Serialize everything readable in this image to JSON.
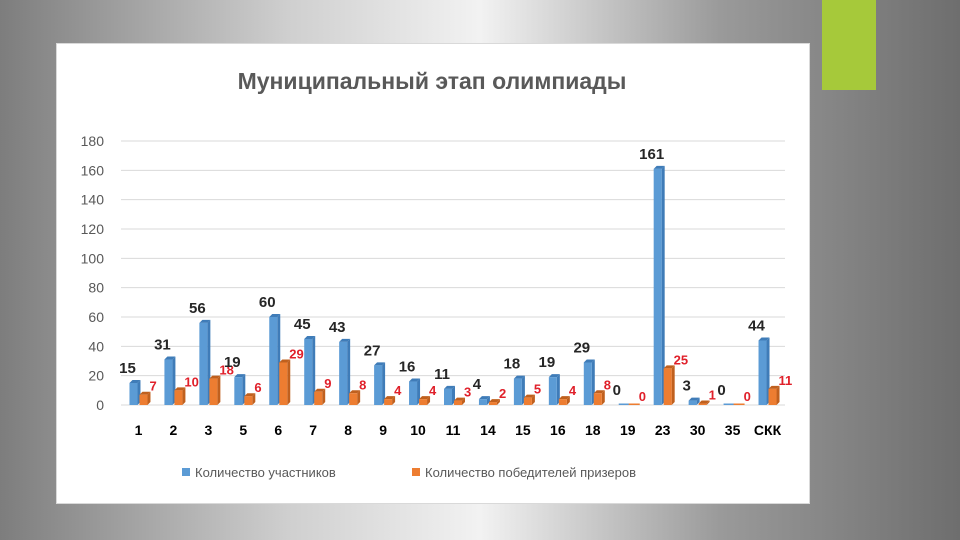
{
  "colors": {
    "accent_square": "#a6c93a",
    "series_participants": "#5b9bd5",
    "series_winners": "#ed7d31",
    "winners_label": "#e0202a"
  },
  "chart_data": {
    "type": "bar",
    "title": "Муниципальный этап олимпиады",
    "xlabel": "",
    "ylabel": "",
    "ylim": [
      0,
      180
    ],
    "yticks": [
      0,
      20,
      40,
      60,
      80,
      100,
      120,
      140,
      160,
      180
    ],
    "grid": true,
    "legend_position": "bottom",
    "categories": [
      "1",
      "2",
      "3",
      "5",
      "6",
      "7",
      "8",
      "9",
      "10",
      "11",
      "14",
      "15",
      "16",
      "18",
      "19",
      "23",
      "30",
      "35",
      "СКК"
    ],
    "series": [
      {
        "name": "Количество участников",
        "values": [
          15,
          31,
          56,
          19,
          60,
          45,
          43,
          27,
          16,
          11,
          4,
          18,
          19,
          29,
          0,
          161,
          3,
          0,
          44
        ]
      },
      {
        "name": "Количество победителей призеров",
        "values": [
          7,
          10,
          18,
          6,
          29,
          9,
          8,
          4,
          4,
          3,
          2,
          5,
          4,
          8,
          0,
          25,
          1,
          0,
          11
        ]
      }
    ]
  }
}
